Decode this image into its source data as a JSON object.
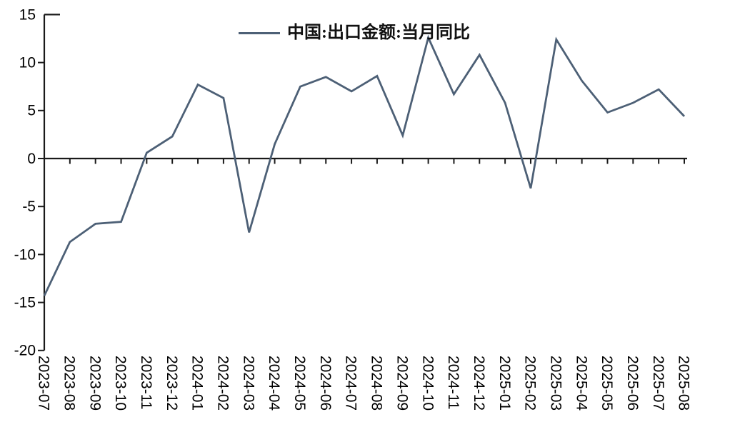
{
  "chart_data": {
    "type": "line",
    "legend": "中国:出口金额:当月同比",
    "categories": [
      "2023-07",
      "2023-08",
      "2023-09",
      "2023-10",
      "2023-11",
      "2023-12",
      "2024-01",
      "2024-02",
      "2024-03",
      "2024-04",
      "2024-05",
      "2024-06",
      "2024-07",
      "2024-08",
      "2024-09",
      "2024-10",
      "2024-11",
      "2024-12",
      "2025-01",
      "2025-02",
      "2025-03",
      "2025-04",
      "2025-05",
      "2025-06",
      "2025-07",
      "2025-08"
    ],
    "values": [
      -14.3,
      -8.7,
      -6.8,
      -6.6,
      0.6,
      2.3,
      7.7,
      6.3,
      -7.7,
      1.5,
      7.5,
      8.5,
      7.0,
      8.6,
      2.4,
      12.6,
      6.7,
      10.8,
      5.8,
      -3.1,
      12.4,
      8.1,
      4.8,
      5.8,
      7.2,
      4.4
    ],
    "ylim": [
      -20,
      15
    ],
    "yticks": [
      15,
      10,
      5,
      0,
      -5,
      -10,
      -15,
      -20
    ],
    "grid": false,
    "legend_position": "top-center",
    "line_color": "#4d6076",
    "axis_color": "#1a1a1a",
    "label_color": "#000000",
    "background": "#ffffff"
  }
}
